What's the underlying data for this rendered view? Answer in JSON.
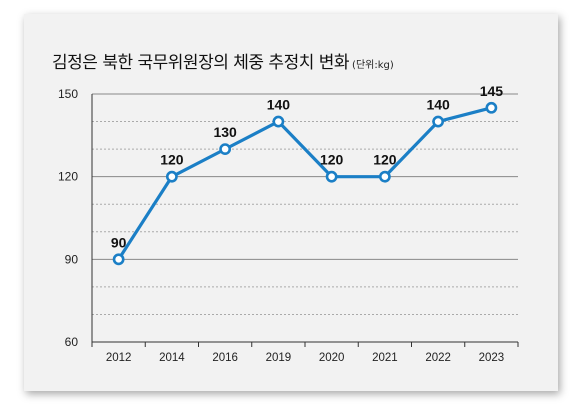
{
  "chart_data": {
    "type": "line",
    "title": "김정은 북한 국무위원장의 체중 추정치 변화",
    "unit": "(단위:kg)",
    "categories": [
      "2012",
      "2014",
      "2016",
      "2019",
      "2020",
      "2021",
      "2022",
      "2023"
    ],
    "series": [
      {
        "values": [
          90,
          120,
          130,
          140,
          120,
          120,
          140,
          145
        ]
      }
    ],
    "ylim": [
      60,
      150
    ],
    "yticks": [
      60,
      90,
      120,
      150
    ],
    "grid": true,
    "legend": "none",
    "line_color": "#1b7fc6"
  }
}
